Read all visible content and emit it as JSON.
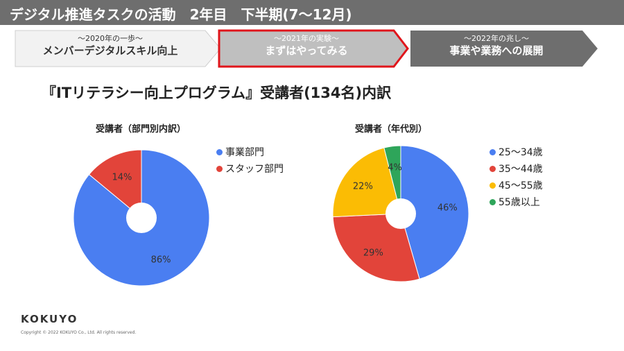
{
  "header": {
    "title": "デジタル推進タスクの活動　2年目　下半期(7～12月)"
  },
  "steps": [
    {
      "sub": "～2020年の一歩～",
      "main": "メンバーデジタルスキル向上",
      "fill": "#f2f2f2",
      "text": "#333333",
      "active": false
    },
    {
      "sub": "～2021年の実験～",
      "main": "まずはやってみる",
      "fill": "#bfbfbf",
      "text": "#ffffff",
      "active": true
    },
    {
      "sub": "～2022年の兆し～",
      "main": "事業や業務への展開",
      "fill": "#6e6e6e",
      "text": "#ffffff",
      "active": false
    }
  ],
  "section_title": "『ITリテラシー向上プログラム』受講者(134名)内訳",
  "chart_data": [
    {
      "type": "pie",
      "title": "受講者（部門別内訳）",
      "categories": [
        "事業部門",
        "スタッフ部門"
      ],
      "values": [
        86,
        14
      ],
      "labels": [
        "86%",
        "14%"
      ],
      "colors": [
        "#4a7ef1",
        "#e2443a"
      ],
      "legend": "right"
    },
    {
      "type": "pie",
      "title": "受講者（年代別）",
      "categories": [
        "25～34歳",
        "35～44歳",
        "45～55歳",
        "55歳以上"
      ],
      "values": [
        46,
        29,
        22,
        4
      ],
      "labels": [
        "46%",
        "29%",
        "22%",
        "4%"
      ],
      "colors": [
        "#4a7ef1",
        "#e2443a",
        "#fbbc04",
        "#2ea55a"
      ],
      "legend": "right"
    }
  ],
  "footer": {
    "logo": "KOKUYO",
    "copyright": "Copyright © 2022 KOKUYO Co., Ltd. All rights reserved."
  }
}
